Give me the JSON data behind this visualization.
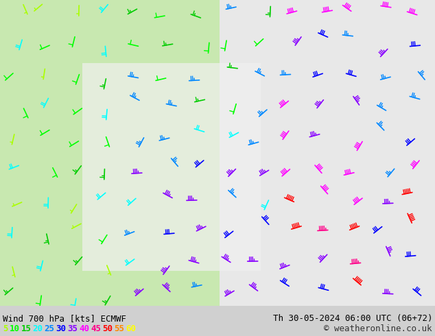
{
  "title_left": "Wind 700 hPa [kts] ECMWF",
  "title_right": "Th 30-05-2024 06:00 UTC (06+72)",
  "copyright": "© weatheronline.co.uk",
  "bg_color": "#e8f5e8",
  "bg_color_right": "#f0f0f0",
  "legend_values": [
    5,
    10,
    15,
    20,
    25,
    30,
    35,
    40,
    45,
    50,
    55,
    60
  ],
  "legend_colors": [
    "#aaff00",
    "#00ff00",
    "#00cc00",
    "#00ffff",
    "#0088ff",
    "#0000ff",
    "#8800ff",
    "#ff00ff",
    "#ff0088",
    "#ff0000",
    "#ff8800",
    "#ffff00"
  ],
  "bottom_bar_color": "#d0d0d0",
  "title_color": "#000000",
  "font_size_title": 9,
  "font_size_legend": 9,
  "wind_colors": {
    "5": "#aaff00",
    "10": "#00ff00",
    "15": "#00cc00",
    "20": "#00ffff",
    "25": "#0088ff",
    "30": "#0000ff",
    "35": "#8800ff",
    "40": "#ff00ff",
    "45": "#ff0088",
    "50": "#ff0000",
    "55": "#ff8800",
    "60": "#ffff00"
  }
}
